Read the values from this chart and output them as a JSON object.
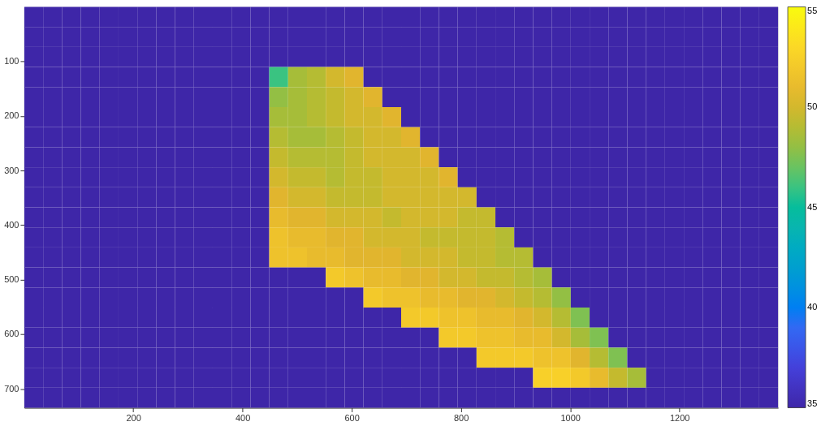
{
  "chart_data": {
    "type": "heatmap",
    "xlim": [
      0.5,
      1380.5
    ],
    "ylim": [
      734.5,
      0.5
    ],
    "xticks": [
      200,
      400,
      600,
      800,
      1000,
      1200
    ],
    "yticks": [
      100,
      200,
      300,
      400,
      500,
      600,
      700
    ],
    "clim": [
      35,
      55
    ],
    "cticks": [
      35,
      40,
      45,
      50,
      55
    ],
    "cells": [
      [
        35,
        35,
        35,
        35,
        35,
        35,
        35,
        35,
        35,
        35,
        35,
        35,
        35,
        35,
        35,
        35,
        35,
        35,
        35,
        35,
        35,
        35,
        35,
        35,
        35,
        35,
        35,
        35,
        35,
        35,
        35,
        35,
        35,
        35,
        35,
        35,
        35,
        35,
        35,
        35
      ],
      [
        35,
        35,
        35,
        35,
        35,
        35,
        35,
        35,
        35,
        35,
        35,
        35,
        35,
        35,
        35,
        35,
        35,
        35,
        35,
        35,
        35,
        35,
        35,
        35,
        35,
        35,
        35,
        35,
        35,
        35,
        35,
        35,
        35,
        35,
        35,
        35,
        35,
        35,
        35,
        35
      ],
      [
        35,
        35,
        35,
        35,
        35,
        35,
        35,
        35,
        35,
        35,
        35,
        35,
        35,
        35,
        35,
        35,
        35,
        35,
        35,
        35,
        35,
        35,
        35,
        35,
        35,
        35,
        35,
        35,
        35,
        35,
        35,
        35,
        35,
        35,
        35,
        35,
        35,
        35,
        35,
        35
      ],
      [
        35,
        35,
        35,
        35,
        35,
        35,
        35,
        35,
        35,
        35,
        35,
        35,
        35,
        46,
        48.5,
        49,
        50,
        50.5,
        35,
        35,
        35,
        35,
        35,
        35,
        35,
        35,
        35,
        35,
        35,
        35,
        35,
        35,
        35,
        35,
        35,
        35,
        35,
        35,
        35,
        35
      ],
      [
        35,
        35,
        35,
        35,
        35,
        35,
        35,
        35,
        35,
        35,
        35,
        35,
        35,
        48,
        48.5,
        49,
        49.5,
        50,
        50.5,
        35,
        35,
        35,
        35,
        35,
        35,
        35,
        35,
        35,
        35,
        35,
        35,
        35,
        35,
        35,
        35,
        35,
        35,
        35,
        35,
        35
      ],
      [
        35,
        35,
        35,
        35,
        35,
        35,
        35,
        35,
        35,
        35,
        35,
        35,
        35,
        48.5,
        48.5,
        49,
        49.5,
        50,
        50,
        50.5,
        35,
        35,
        35,
        35,
        35,
        35,
        35,
        35,
        35,
        35,
        35,
        35,
        35,
        35,
        35,
        35,
        35,
        35,
        35,
        35
      ],
      [
        35,
        35,
        35,
        35,
        35,
        35,
        35,
        35,
        35,
        35,
        35,
        35,
        35,
        49,
        48.5,
        48.5,
        49,
        49.5,
        50,
        50,
        50.5,
        35,
        35,
        35,
        35,
        35,
        35,
        35,
        35,
        35,
        35,
        35,
        35,
        35,
        35,
        35,
        35,
        35,
        35,
        35
      ],
      [
        35,
        35,
        35,
        35,
        35,
        35,
        35,
        35,
        35,
        35,
        35,
        35,
        35,
        49.5,
        49,
        49,
        49,
        49.5,
        50,
        50,
        50,
        50.5,
        35,
        35,
        35,
        35,
        35,
        35,
        35,
        35,
        35,
        35,
        35,
        35,
        35,
        35,
        35,
        35,
        35,
        35
      ],
      [
        35,
        35,
        35,
        35,
        35,
        35,
        35,
        35,
        35,
        35,
        35,
        35,
        35,
        50,
        49.5,
        49.5,
        49,
        49.5,
        49.5,
        50,
        50,
        50,
        50.5,
        35,
        35,
        35,
        35,
        35,
        35,
        35,
        35,
        35,
        35,
        35,
        35,
        35,
        35,
        35,
        35,
        35
      ],
      [
        35,
        35,
        35,
        35,
        35,
        35,
        35,
        35,
        35,
        35,
        35,
        35,
        35,
        50.5,
        50,
        50,
        49.5,
        49.5,
        49.5,
        50,
        50,
        50,
        50,
        50,
        35,
        35,
        35,
        35,
        35,
        35,
        35,
        35,
        35,
        35,
        35,
        35,
        35,
        35,
        35,
        35
      ],
      [
        35,
        35,
        35,
        35,
        35,
        35,
        35,
        35,
        35,
        35,
        35,
        35,
        35,
        51,
        50.5,
        50.5,
        50,
        50,
        50,
        49.5,
        50,
        50,
        50,
        49.5,
        49.5,
        35,
        35,
        35,
        35,
        35,
        35,
        35,
        35,
        35,
        35,
        35,
        35,
        35,
        35,
        35
      ],
      [
        35,
        35,
        35,
        35,
        35,
        35,
        35,
        35,
        35,
        35,
        35,
        35,
        35,
        51.5,
        51,
        51,
        50.5,
        50.5,
        50,
        50,
        50,
        49.5,
        49.5,
        49.5,
        49.5,
        49,
        35,
        35,
        35,
        35,
        35,
        35,
        35,
        35,
        35,
        35,
        35,
        35,
        35,
        35
      ],
      [
        35,
        35,
        35,
        35,
        35,
        35,
        35,
        35,
        35,
        35,
        35,
        35,
        35,
        51.5,
        51.5,
        51,
        51,
        50.5,
        50.5,
        50.5,
        50,
        50,
        50,
        49.5,
        49.5,
        49,
        49,
        35,
        35,
        35,
        35,
        35,
        35,
        35,
        35,
        35,
        35,
        35,
        35,
        35
      ],
      [
        35,
        35,
        35,
        35,
        35,
        35,
        35,
        35,
        35,
        35,
        35,
        35,
        35,
        35,
        35,
        35,
        52,
        51.5,
        51,
        51,
        50.5,
        50.5,
        50,
        50,
        49.5,
        49.5,
        49,
        48.5,
        35,
        35,
        35,
        35,
        35,
        35,
        35,
        35,
        35,
        35,
        35,
        35
      ],
      [
        35,
        35,
        35,
        35,
        35,
        35,
        35,
        35,
        35,
        35,
        35,
        35,
        35,
        35,
        35,
        35,
        35,
        35,
        52,
        51.5,
        51.5,
        51,
        51,
        50.5,
        50.5,
        50,
        49.5,
        49,
        48,
        35,
        35,
        35,
        35,
        35,
        35,
        35,
        35,
        35,
        35,
        35
      ],
      [
        35,
        35,
        35,
        35,
        35,
        35,
        35,
        35,
        35,
        35,
        35,
        35,
        35,
        35,
        35,
        35,
        35,
        35,
        35,
        35,
        52,
        52,
        51.5,
        51.5,
        51,
        51,
        50.5,
        50,
        49,
        47.5,
        35,
        35,
        35,
        35,
        35,
        35,
        35,
        35,
        35,
        35
      ],
      [
        35,
        35,
        35,
        35,
        35,
        35,
        35,
        35,
        35,
        35,
        35,
        35,
        35,
        35,
        35,
        35,
        35,
        35,
        35,
        35,
        35,
        35,
        52,
        52,
        51.5,
        51.5,
        51,
        51,
        50,
        48.5,
        47.5,
        35,
        35,
        35,
        35,
        35,
        35,
        35,
        35,
        35
      ],
      [
        35,
        35,
        35,
        35,
        35,
        35,
        35,
        35,
        35,
        35,
        35,
        35,
        35,
        35,
        35,
        35,
        35,
        35,
        35,
        35,
        35,
        35,
        35,
        35,
        52,
        52,
        52,
        51.5,
        51.5,
        50.5,
        49,
        47.5,
        35,
        35,
        35,
        35,
        35,
        35,
        35,
        35
      ],
      [
        35,
        35,
        35,
        35,
        35,
        35,
        35,
        35,
        35,
        35,
        35,
        35,
        35,
        35,
        35,
        35,
        35,
        35,
        35,
        35,
        35,
        35,
        35,
        35,
        35,
        35,
        35,
        52.5,
        52.5,
        52,
        51,
        49.5,
        48.5,
        35,
        35,
        35,
        35,
        35,
        35,
        35
      ],
      [
        35,
        35,
        35,
        35,
        35,
        35,
        35,
        35,
        35,
        35,
        35,
        35,
        35,
        35,
        35,
        35,
        35,
        35,
        35,
        35,
        35,
        35,
        35,
        35,
        35,
        35,
        35,
        35,
        35,
        35,
        35,
        35,
        35,
        35,
        35,
        35,
        35,
        35,
        35,
        35
      ]
    ]
  }
}
